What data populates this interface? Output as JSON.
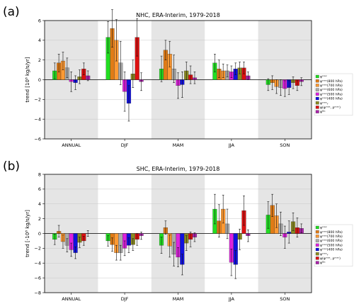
{
  "chart_data": [
    {
      "type": "bar",
      "panel": "(a)",
      "title": "NHC, ERA-Interim, 1979-2018",
      "ylabel": "trend [10⁸ kg/s/yr]",
      "xlabel": "",
      "ylim": [
        -6,
        6
      ],
      "yticks": [
        -6,
        -4,
        -2,
        0,
        2,
        4,
        6
      ],
      "grid": true,
      "legend_placement": "right",
      "categories": [
        "ANNUAL",
        "DJF",
        "MAM",
        "JJA",
        "SON"
      ],
      "series": [
        {
          "name": "ψᵐᵃˣ",
          "color": "#22dd22",
          "values": [
            0.9,
            4.3,
            1.1,
            1.7,
            -0.5
          ],
          "err": [
            0.8,
            1.6,
            1.3,
            0.9,
            0.6
          ]
        },
        {
          "name": "ψᵐᵃˣ(800 hPa)",
          "color": "#e07b16",
          "values": [
            1.7,
            5.2,
            3.0,
            1.1,
            -0.3
          ],
          "err": [
            0.9,
            1.9,
            1.0,
            0.9,
            0.7
          ]
        },
        {
          "name": "ψᵐᵃˣ(700 hPa)",
          "color": "#ff9a33",
          "values": [
            1.9,
            4.0,
            2.6,
            0.9,
            -0.7
          ],
          "err": [
            0.9,
            2.1,
            1.3,
            0.7,
            0.7
          ]
        },
        {
          "name": "ψᵐᵃˣ(600 hPa)",
          "color": "#aaaaaa",
          "values": [
            1.2,
            1.7,
            1.1,
            0.9,
            -0.8
          ],
          "err": [
            1.0,
            2.2,
            1.4,
            0.6,
            0.8
          ]
        },
        {
          "name": "ψᵐᵃˣ(500 hPa)",
          "color": "#dd22dd",
          "values": [
            -0.2,
            -1.2,
            -0.6,
            0.8,
            -0.9
          ],
          "err": [
            1.0,
            2.0,
            1.3,
            0.6,
            0.8
          ]
        },
        {
          "name": "ψᵐᵃˣ(400 hPa)",
          "color": "#1111dd",
          "values": [
            -0.3,
            -2.4,
            -0.5,
            1.1,
            -0.8
          ],
          "err": [
            0.7,
            1.8,
            1.3,
            0.6,
            0.7
          ]
        },
        {
          "name": "ψᵐᵃˣᵧ",
          "color": "#8a8a22",
          "values": [
            0.3,
            0.6,
            0.9,
            1.2,
            -0.3
          ],
          "err": [
            0.7,
            1.4,
            0.9,
            0.6,
            0.6
          ]
        },
        {
          "name": "ψ(φᵐᵃˣ, pᵐᵃˣ)",
          "color": "#dd1111",
          "values": [
            1.1,
            4.3,
            0.5,
            1.2,
            -0.6
          ],
          "err": [
            0.6,
            1.9,
            0.9,
            0.6,
            0.5
          ]
        },
        {
          "name": "ψᴰᴶᶜ",
          "color": "#aa22aa",
          "values": [
            0.4,
            -0.2,
            0.2,
            0.4,
            -0.2
          ],
          "err": [
            0.5,
            0.9,
            0.6,
            0.4,
            0.4
          ]
        }
      ]
    },
    {
      "type": "bar",
      "panel": "(b)",
      "title": "SHC, ERA-Interim, 1979-2018",
      "ylabel": "trend [-10⁸ kg/s/yr]",
      "xlabel": "",
      "ylim": [
        -8,
        8
      ],
      "yticks": [
        -8,
        -6,
        -4,
        -2,
        0,
        2,
        4,
        6,
        8
      ],
      "grid": true,
      "legend_placement": "right",
      "categories": [
        "ANNUAL",
        "DJF",
        "MAM",
        "JJA",
        "SON"
      ],
      "series": [
        {
          "name": "ψᵐᵃˣ",
          "color": "#22dd22",
          "values": [
            -0.8,
            -1.0,
            -1.6,
            3.3,
            2.5
          ],
          "err": [
            0.7,
            0.7,
            1.1,
            2.0,
            1.8
          ]
        },
        {
          "name": "ψᵐᵃˣ(800 hPa)",
          "color": "#e07b16",
          "values": [
            0.3,
            -1.5,
            0.8,
            1.7,
            3.8
          ],
          "err": [
            0.8,
            0.9,
            0.9,
            2.2,
            1.5
          ]
        },
        {
          "name": "ψᵐᵃˣ(700 hPa)",
          "color": "#ff9a33",
          "values": [
            -1.1,
            -2.6,
            -1.7,
            3.3,
            2.4
          ],
          "err": [
            0.9,
            1.0,
            1.5,
            1.9,
            1.6
          ]
        },
        {
          "name": "ψᵐᵃˣ(600 hPa)",
          "color": "#aaaaaa",
          "values": [
            -1.6,
            -2.6,
            -2.8,
            1.3,
            1.3
          ],
          "err": [
            0.9,
            1.0,
            1.6,
            2.0,
            1.6
          ]
        },
        {
          "name": "ψᵐᵃˣ(500 hPa)",
          "color": "#dd22dd",
          "values": [
            -2.2,
            -2.0,
            -3.2,
            -3.9,
            -0.5
          ],
          "err": [
            0.9,
            1.0,
            1.3,
            1.8,
            1.5
          ]
        },
        {
          "name": "ψᵐᵃˣ(400 hPa)",
          "color": "#1111dd",
          "values": [
            -2.6,
            -1.6,
            -4.2,
            -4.2,
            0.2
          ],
          "err": [
            0.8,
            1.0,
            1.4,
            1.9,
            1.5
          ]
        },
        {
          "name": "ψᵐᵃˣᵧ",
          "color": "#8a8a22",
          "values": [
            -1.2,
            -1.5,
            -1.3,
            -0.8,
            1.6
          ],
          "err": [
            0.7,
            0.8,
            1.0,
            1.4,
            1.2
          ]
        },
        {
          "name": "ψ(φᵐᵃˣ, pᵐᵃˣ)",
          "color": "#dd1111",
          "values": [
            -1.0,
            -0.8,
            -0.8,
            3.1,
            0.8
          ],
          "err": [
            0.6,
            0.8,
            1.0,
            2.0,
            1.3
          ]
        },
        {
          "name": "ψᴰᴶᶜ",
          "color": "#aa22aa",
          "values": [
            0.0,
            -0.3,
            -0.5,
            -0.3,
            0.7
          ],
          "err": [
            0.4,
            0.5,
            0.6,
            0.8,
            0.6
          ]
        }
      ]
    }
  ]
}
